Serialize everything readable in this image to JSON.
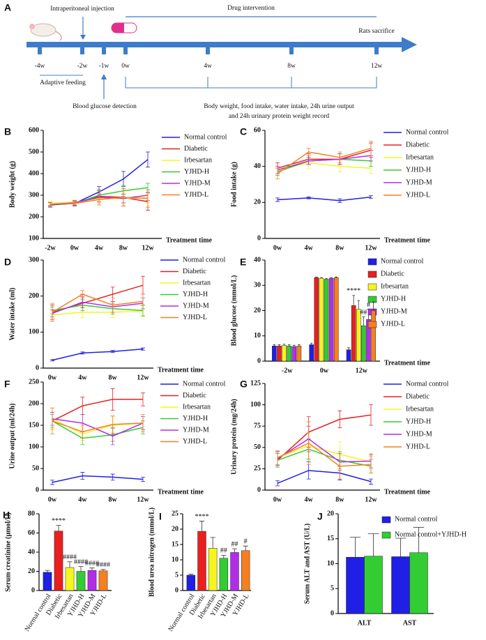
{
  "timeline": {
    "label": "A",
    "injection": "Intraperitoneal injection",
    "intervention": "Drug intervention",
    "sacrifice": "Rats sacrifice",
    "ticks": [
      "-4w",
      "-2w",
      "-1w",
      "0w",
      "4w",
      "8w",
      "12w"
    ],
    "adaptive": "Adaptive feeding",
    "glucose": "Blood glucose detection",
    "record": [
      "Body weight, food intake, water intake, 24h urine output",
      "and 24h urinary protein weight record"
    ]
  },
  "chart_data": [
    {
      "type": "line",
      "label": "B",
      "ylabel": "Body weight (g)",
      "xlabel": "Treatment time",
      "categories": [
        "-2w",
        "0w",
        "4w",
        "8w",
        "12w"
      ],
      "ylim": [
        100,
        600
      ],
      "yticks": [
        100,
        200,
        300,
        400,
        500,
        600
      ],
      "series": [
        {
          "name": "Normal control",
          "color": "#1f1fe6",
          "values": [
            255,
            262,
            315,
            375,
            465
          ],
          "errors": [
            10,
            12,
            25,
            35,
            35
          ]
        },
        {
          "name": "Diabetic",
          "color": "#e8201f",
          "values": [
            260,
            265,
            295,
            290,
            270
          ],
          "errors": [
            8,
            10,
            30,
            40,
            40
          ]
        },
        {
          "name": "Irbesartan",
          "color": "#f5f51f",
          "values": [
            262,
            268,
            285,
            285,
            290
          ],
          "errors": [
            8,
            10,
            20,
            25,
            25
          ]
        },
        {
          "name": "YJHD-H",
          "color": "#33cc33",
          "values": [
            258,
            262,
            300,
            320,
            335
          ],
          "errors": [
            8,
            10,
            20,
            25,
            20
          ]
        },
        {
          "name": "YJHD-M",
          "color": "#b22ee6",
          "values": [
            258,
            265,
            290,
            285,
            300
          ],
          "errors": [
            8,
            10,
            20,
            20,
            25
          ]
        },
        {
          "name": "YJHD-L",
          "color": "#f77f1f",
          "values": [
            258,
            262,
            280,
            290,
            285
          ],
          "errors": [
            8,
            10,
            25,
            40,
            40
          ]
        }
      ]
    },
    {
      "type": "line",
      "label": "C",
      "ylabel": "Food intake (g)",
      "xlabel": "Treatment time",
      "categories": [
        "0w",
        "4w",
        "8w",
        "12w"
      ],
      "ylim": [
        0,
        60
      ],
      "yticks": [
        0,
        20,
        40,
        60
      ],
      "series": [
        {
          "name": "Normal control",
          "color": "#1f1fe6",
          "values": [
            21.5,
            22.5,
            21,
            23
          ],
          "errors": [
            1,
            0.5,
            1,
            0.8
          ]
        },
        {
          "name": "Diabetic",
          "color": "#e8201f",
          "values": [
            39,
            44,
            44,
            49
          ],
          "errors": [
            3,
            3,
            3,
            4
          ]
        },
        {
          "name": "Irbesartan",
          "color": "#f5f51f",
          "values": [
            38,
            42,
            40,
            39
          ],
          "errors": [
            2,
            3,
            3,
            3
          ]
        },
        {
          "name": "YJHD-H",
          "color": "#33cc33",
          "values": [
            37,
            43,
            44,
            43
          ],
          "errors": [
            2,
            2,
            3,
            3
          ]
        },
        {
          "name": "YJHD-M",
          "color": "#b22ee6",
          "values": [
            38,
            43,
            44,
            46
          ],
          "errors": [
            2,
            2,
            3,
            3
          ]
        },
        {
          "name": "YJHD-L",
          "color": "#f77f1f",
          "values": [
            36,
            48,
            45,
            50
          ],
          "errors": [
            3,
            2,
            3,
            4
          ]
        }
      ]
    },
    {
      "type": "line",
      "label": "D",
      "ylabel": "Water intake (ml)",
      "xlabel": "Treatment time",
      "categories": [
        "0w",
        "4w",
        "8w",
        "12w"
      ],
      "ylim": [
        0,
        300
      ],
      "yticks": [
        0,
        100,
        200,
        300
      ],
      "series": [
        {
          "name": "Normal control",
          "color": "#1f1fe6",
          "values": [
            22,
            42,
            46,
            53
          ],
          "errors": [
            2,
            3,
            3,
            3
          ]
        },
        {
          "name": "Diabetic",
          "color": "#e8201f",
          "values": [
            155,
            180,
            205,
            230
          ],
          "errors": [
            20,
            25,
            20,
            25
          ]
        },
        {
          "name": "Irbesartan",
          "color": "#f5f51f",
          "values": [
            148,
            155,
            155,
            158
          ],
          "errors": [
            10,
            15,
            15,
            15
          ]
        },
        {
          "name": "YJHD-H",
          "color": "#33cc33",
          "values": [
            160,
            175,
            165,
            160
          ],
          "errors": [
            10,
            15,
            15,
            15
          ]
        },
        {
          "name": "YJHD-M",
          "color": "#b22ee6",
          "values": [
            152,
            183,
            170,
            180
          ],
          "errors": [
            10,
            15,
            15,
            15
          ]
        },
        {
          "name": "YJHD-L",
          "color": "#f77f1f",
          "values": [
            155,
            205,
            175,
            185
          ],
          "errors": [
            25,
            10,
            20,
            20
          ]
        }
      ]
    },
    {
      "type": "bar",
      "label": "E",
      "ylabel": "Blood glucose (mmol/L)",
      "xlabel": "Treatment time",
      "categories": [
        "-2w",
        "0w",
        "12w"
      ],
      "ylim": [
        0,
        40
      ],
      "yticks": [
        0,
        10,
        20,
        30,
        40
      ],
      "series": [
        {
          "name": "Normal control",
          "color": "#1f1fe6",
          "values": [
            6,
            6.5,
            4.5
          ],
          "errors": [
            0.5,
            0.6,
            0.8
          ]
        },
        {
          "name": "Diabetic",
          "color": "#e8201f",
          "values": [
            6,
            33,
            22
          ],
          "errors": [
            0.5,
            0.3,
            4
          ],
          "annotations": [
            null,
            null,
            "****"
          ]
        },
        {
          "name": "Irbesartan",
          "color": "#f5f51f",
          "values": [
            6.2,
            32.8,
            20.5
          ],
          "errors": [
            0.5,
            0.3,
            3.5
          ]
        },
        {
          "name": "YJHD-H",
          "color": "#33cc33",
          "values": [
            6,
            32.4,
            14
          ],
          "errors": [
            0.5,
            0.3,
            3.5
          ],
          "annotations": [
            null,
            null,
            "##"
          ]
        },
        {
          "name": "YJHD-M",
          "color": "#b22ee6",
          "values": [
            5.8,
            32.8,
            16.5
          ],
          "errors": [
            0.5,
            0.3,
            4
          ],
          "annotations": [
            null,
            null,
            "#"
          ]
        },
        {
          "name": "YJHD-L",
          "color": "#f77f1f",
          "values": [
            6,
            33,
            20
          ],
          "errors": [
            0.5,
            0.3,
            3.5
          ]
        }
      ]
    },
    {
      "type": "line",
      "label": "F",
      "ylabel": "Urine output (ml/24h)",
      "xlabel": "Treatment time",
      "categories": [
        "0w",
        "4w",
        "8w",
        "12w"
      ],
      "ylim": [
        0,
        250
      ],
      "yticks": [
        0,
        50,
        100,
        150,
        200,
        250
      ],
      "series": [
        {
          "name": "Normal control",
          "color": "#1f1fe6",
          "values": [
            18,
            33,
            30,
            25
          ],
          "errors": [
            5,
            8,
            7,
            5
          ]
        },
        {
          "name": "Diabetic",
          "color": "#e8201f",
          "values": [
            160,
            195,
            210,
            210
          ],
          "errors": [
            20,
            20,
            25,
            15
          ]
        },
        {
          "name": "Irbesartan",
          "color": "#f5f51f",
          "values": [
            165,
            130,
            150,
            155
          ],
          "errors": [
            25,
            15,
            20,
            15
          ]
        },
        {
          "name": "YJHD-H",
          "color": "#33cc33",
          "values": [
            160,
            120,
            128,
            145
          ],
          "errors": [
            15,
            15,
            15,
            15
          ]
        },
        {
          "name": "YJHD-M",
          "color": "#b22ee6",
          "values": [
            165,
            155,
            125,
            155
          ],
          "errors": [
            15,
            20,
            20,
            15
          ]
        },
        {
          "name": "YJHD-L",
          "color": "#f77f1f",
          "values": [
            160,
            135,
            152,
            155
          ],
          "errors": [
            30,
            15,
            20,
            20
          ]
        }
      ]
    },
    {
      "type": "line",
      "label": "G",
      "ylabel": "Urinary protein (mg/24h)",
      "xlabel": "Treatment time",
      "categories": [
        "0w",
        "4w",
        "8w",
        "12w"
      ],
      "ylim": [
        0,
        125
      ],
      "yticks": [
        0,
        25,
        50,
        75,
        100,
        125
      ],
      "series": [
        {
          "name": "Normal control",
          "color": "#1f1fe6",
          "values": [
            8,
            23,
            20,
            10
          ],
          "errors": [
            3,
            10,
            8,
            3
          ]
        },
        {
          "name": "Diabetic",
          "color": "#e8201f",
          "values": [
            35,
            68,
            83,
            88
          ],
          "errors": [
            8,
            18,
            10,
            12
          ]
        },
        {
          "name": "Irbesartan",
          "color": "#f5f51f",
          "values": [
            38,
            52,
            42,
            33
          ],
          "errors": [
            8,
            15,
            15,
            10
          ]
        },
        {
          "name": "YJHD-H",
          "color": "#33cc33",
          "values": [
            35,
            48,
            35,
            28
          ],
          "errors": [
            8,
            12,
            10,
            8
          ]
        },
        {
          "name": "YJHD-M",
          "color": "#b22ee6",
          "values": [
            37,
            60,
            33,
            34
          ],
          "errors": [
            8,
            15,
            10,
            8
          ]
        },
        {
          "name": "YJHD-L",
          "color": "#f77f1f",
          "values": [
            38,
            55,
            28,
            30
          ],
          "errors": [
            8,
            25,
            15,
            10
          ]
        }
      ]
    },
    {
      "type": "bar",
      "label": "H",
      "ylabel": "Serum creatinine (μmol/L)",
      "categories": [
        "Normal control",
        "Diabetic",
        "Irbesartan",
        "YJHD-H",
        "YJHD-M",
        "YJHD-L"
      ],
      "colors": [
        "#1f1fe6",
        "#e8201f",
        "#f5f51f",
        "#33cc33",
        "#b22ee6",
        "#f77f1f"
      ],
      "values": [
        19,
        62,
        24,
        20,
        21,
        20.5
      ],
      "errors": [
        2,
        6,
        6,
        5,
        2.5,
        1.5
      ],
      "annotations": [
        null,
        "****",
        "####",
        "####",
        "####",
        "####"
      ],
      "ylim": [
        0,
        80
      ],
      "yticks": [
        0,
        20,
        40,
        60,
        80
      ]
    },
    {
      "type": "bar",
      "label": "I",
      "ylabel": "Blood urea nitrogen (mmol/L)",
      "categories": [
        "Normal control",
        "Diabetic",
        "Irbesartan",
        "YJHD-H",
        "YJHD-M",
        "YJHD-L"
      ],
      "colors": [
        "#1f1fe6",
        "#e8201f",
        "#f5f51f",
        "#33cc33",
        "#b22ee6",
        "#f77f1f"
      ],
      "values": [
        5,
        19.3,
        13.8,
        10.5,
        12.4,
        13
      ],
      "errors": [
        0.3,
        3.3,
        3.5,
        1,
        1.2,
        1.5
      ],
      "annotations": [
        null,
        "****",
        null,
        "##",
        "##",
        "#"
      ],
      "ylim": [
        0,
        25
      ],
      "yticks": [
        0,
        5,
        10,
        15,
        20,
        25
      ]
    },
    {
      "type": "bar",
      "label": "J",
      "ylabel": "Serum ALT and AST (U/L)",
      "categories": [
        "ALT",
        "AST"
      ],
      "ylim": [
        0,
        20
      ],
      "yticks": [
        0,
        5,
        10,
        15,
        20
      ],
      "series": [
        {
          "name": "Normal control",
          "color": "#1f1fe6",
          "values": [
            11.3,
            11.4
          ],
          "errors": [
            4,
            3.7
          ]
        },
        {
          "name": "Normal control+YJHD-H",
          "color": "#33cc33",
          "values": [
            11.5,
            12.2
          ],
          "errors": [
            4.5,
            5.1
          ]
        }
      ]
    }
  ]
}
